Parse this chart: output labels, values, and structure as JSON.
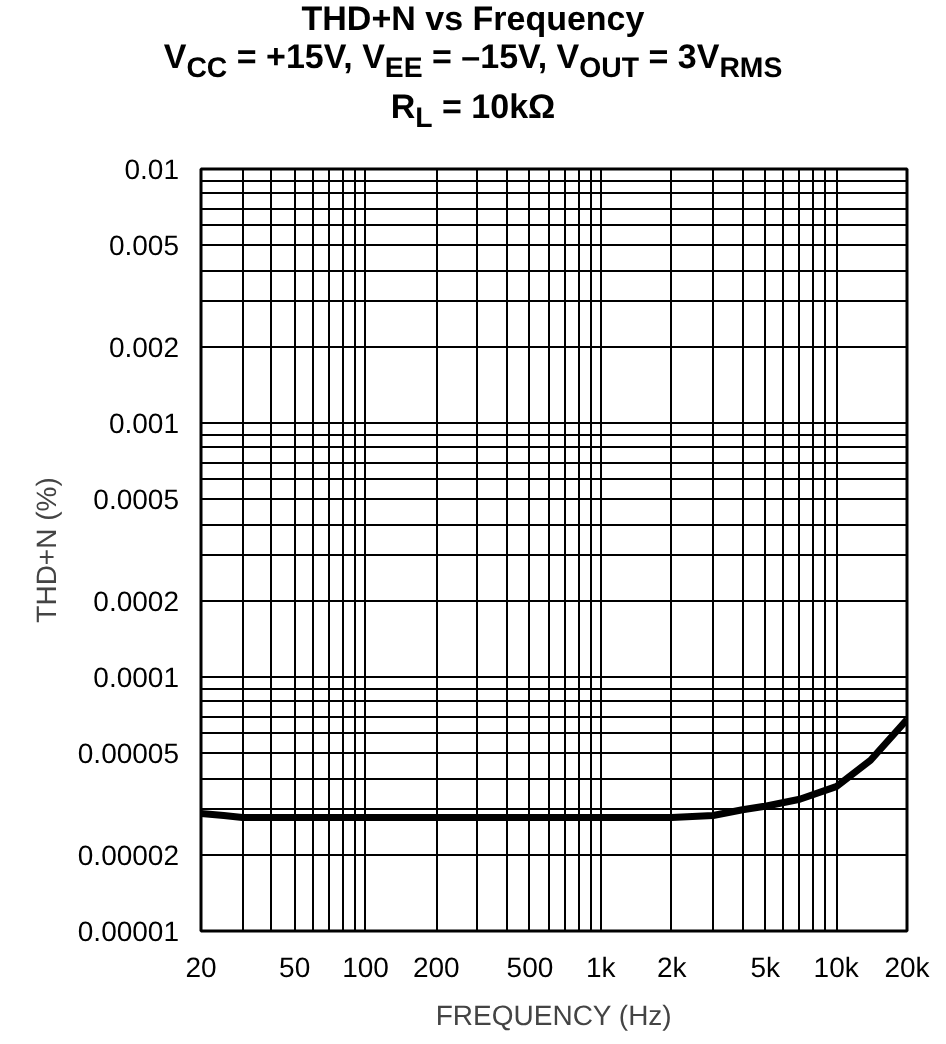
{
  "chart_data": {
    "type": "line",
    "title": "THD+N vs Frequency",
    "subtitle": "V$_{CC}$ = +15V, V$_{EE}$ = –15V, V$_{OUT}$ = 3V$_{RMS}$\nR$_{L}$ = 10kΩ",
    "xlabel": "FREQUENCY (Hz)",
    "ylabel": "THD+N (%)",
    "log": "xy",
    "grid": true,
    "xlim": [
      20,
      20000
    ],
    "ylim": [
      1e-05,
      0.01
    ],
    "xticks": [
      20,
      50,
      100,
      200,
      500,
      {
        "value": 1000,
        "label": "1k"
      },
      {
        "value": 2000,
        "label": "2k"
      },
      {
        "value": 5000,
        "label": "5k"
      },
      {
        "value": 10000,
        "label": "10k"
      },
      {
        "value": 20000,
        "label": "20k"
      }
    ],
    "yticks": [
      {
        "value": 1e-05,
        "label": "0.00001"
      },
      {
        "value": 2e-05,
        "label": "0.00002"
      },
      {
        "value": 5e-05,
        "label": "0.00005"
      },
      {
        "value": 0.0001,
        "label": "0.0001"
      },
      {
        "value": 0.0002,
        "label": "0.0002"
      },
      {
        "value": 0.0005,
        "label": "0.0005"
      },
      {
        "value": 0.001,
        "label": "0.001"
      },
      {
        "value": 0.002,
        "label": "0.002"
      },
      {
        "value": 0.005,
        "label": "0.005"
      },
      {
        "value": 0.01,
        "label": "0.01"
      }
    ],
    "x": [
      20,
      25,
      30,
      50,
      100,
      200,
      500,
      1000,
      2000,
      3000,
      4000,
      5000,
      7000,
      10000,
      14000,
      20000
    ],
    "series": [
      {
        "color": "#000000",
        "values": [
          2.9e-05,
          2.85e-05,
          2.8e-05,
          2.8e-05,
          2.8e-05,
          2.8e-05,
          2.8e-05,
          2.8e-05,
          2.8e-05,
          2.85e-05,
          3e-05,
          3.1e-05,
          3.3e-05,
          3.7e-05,
          4.7e-05,
          6.8e-05
        ]
      }
    ]
  }
}
